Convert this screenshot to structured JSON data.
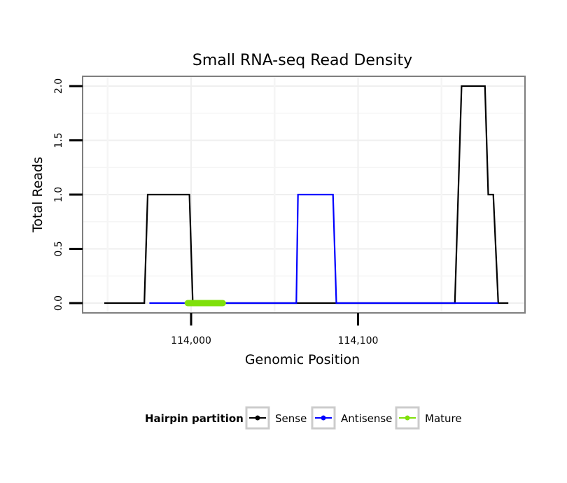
{
  "chart_data": {
    "type": "line",
    "title": "Small RNA-seq Read Density",
    "xlabel": "Genomic Position",
    "ylabel": "Total Reads",
    "xlim": [
      113935,
      114200
    ],
    "ylim": [
      -0.09,
      2.09
    ],
    "x_ticks": [
      {
        "value": 114000,
        "label": "114,000"
      },
      {
        "value": 114100,
        "label": "114,100"
      }
    ],
    "y_ticks": [
      {
        "value": 0.0,
        "label": "0.0"
      },
      {
        "value": 0.5,
        "label": "0.5"
      },
      {
        "value": 1.0,
        "label": "1.0"
      },
      {
        "value": 1.5,
        "label": "1.5"
      },
      {
        "value": 2.0,
        "label": "2.0"
      }
    ],
    "grid": true,
    "series": [
      {
        "name": "Sense",
        "color": "#000000",
        "x": [
          113948,
          113972,
          113974,
          113999,
          114001,
          114061,
          114158,
          114160,
          114162,
          114176,
          114178,
          114181,
          114184,
          114190
        ],
        "y": [
          0,
          0,
          1,
          1,
          0,
          0,
          0,
          1,
          2,
          2,
          1,
          1,
          0,
          0
        ]
      },
      {
        "name": "Antisense",
        "color": "#0000ff",
        "x": [
          113975,
          113999,
          114063,
          114064,
          114085,
          114087,
          114160,
          114184
        ],
        "y": [
          0,
          0,
          0,
          1,
          1,
          0,
          0,
          0
        ]
      },
      {
        "name": "Mature",
        "color": "#7fe00a",
        "x": [
          113998,
          114019
        ],
        "y": [
          0,
          0
        ]
      }
    ],
    "legend": {
      "title": "Hairpin partition",
      "position": "bottom",
      "entries": [
        "Sense",
        "Antisense",
        "Mature"
      ]
    }
  }
}
